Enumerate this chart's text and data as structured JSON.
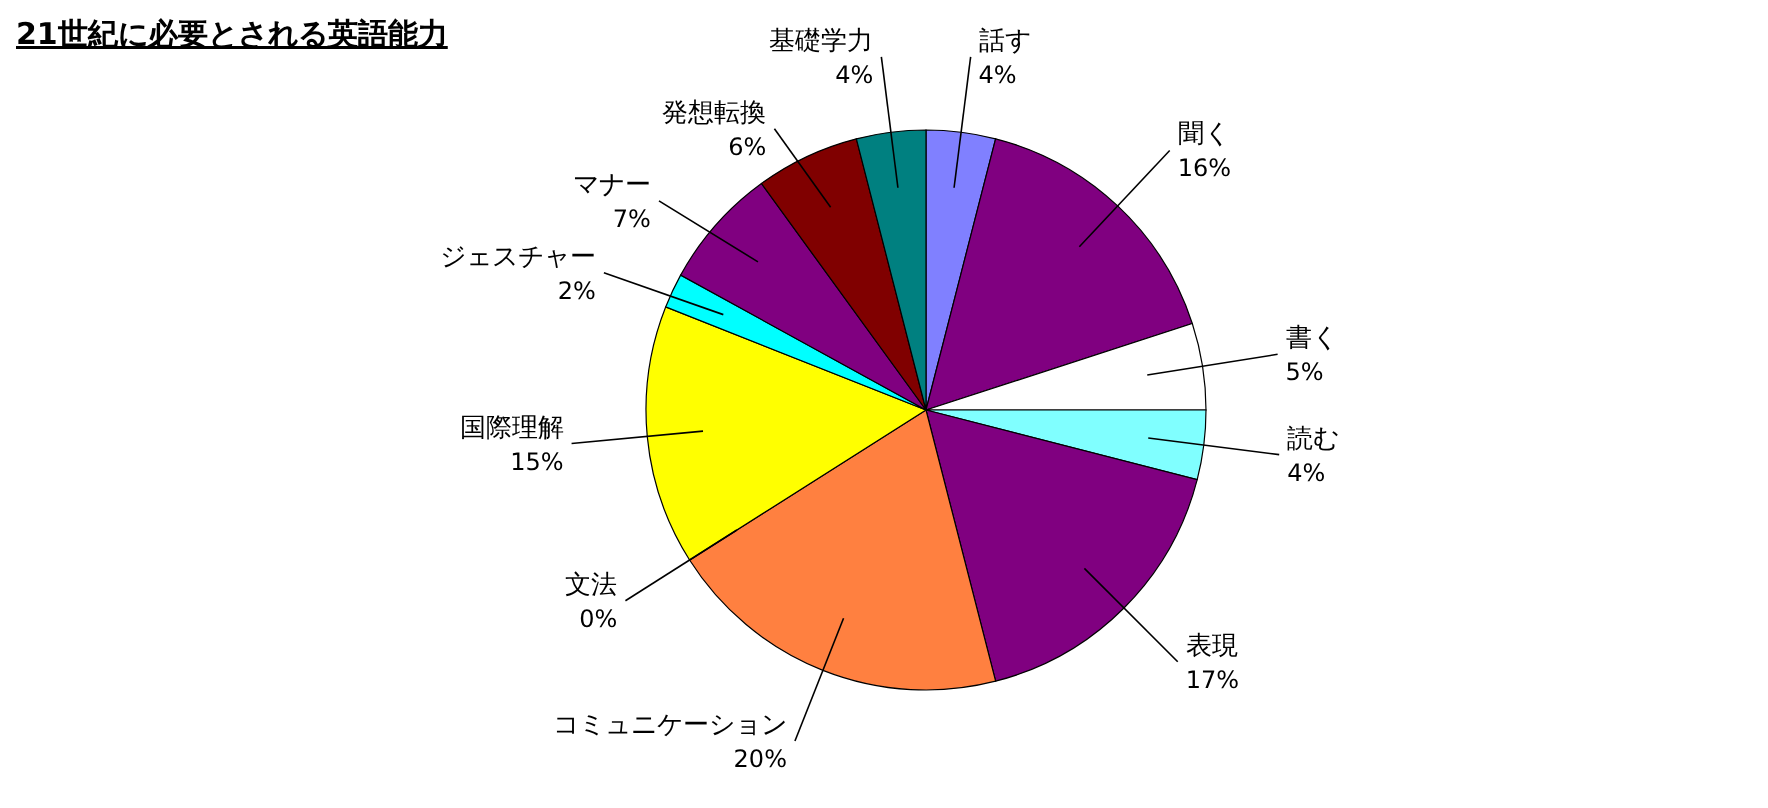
{
  "chart_data": {
    "type": "pie",
    "title": "21世紀に必要とされる英語能力",
    "categories": [
      "話す",
      "聞く",
      "書く",
      "読む",
      "表現",
      "コミュニケーション",
      "文法",
      "国際理解",
      "ジェスチャー",
      "マナー",
      "発想転換",
      "基礎学力"
    ],
    "values": [
      4,
      16,
      5,
      4,
      17,
      20,
      0,
      15,
      2,
      7,
      6,
      4
    ],
    "value_labels": [
      "4%",
      "16%",
      "5%",
      "4%",
      "17%",
      "20%",
      "0%",
      "15%",
      "2%",
      "7%",
      "6%",
      "4%"
    ],
    "colors": [
      "#8080ff",
      "#800080",
      "#ffffff",
      "#80ffff",
      "#800080",
      "#ff8040",
      "#c000c0",
      "#ffff00",
      "#00ffff",
      "#800080",
      "#800000",
      "#008080"
    ]
  }
}
